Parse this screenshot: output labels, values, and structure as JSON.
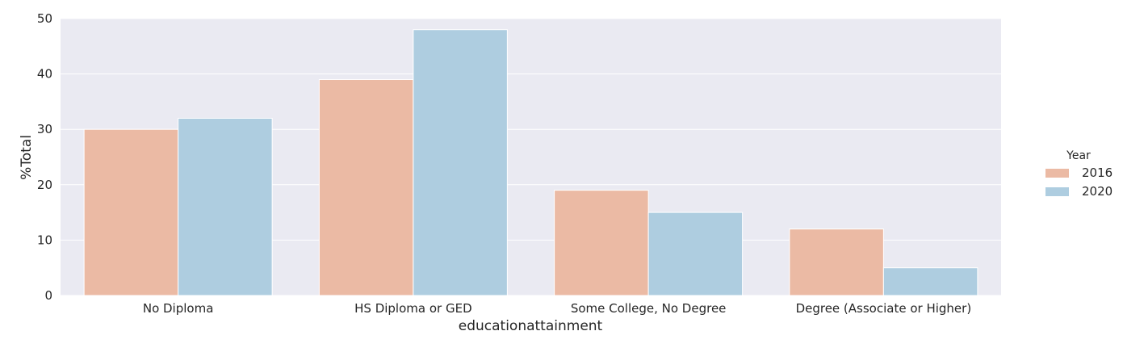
{
  "chart_data": {
    "type": "bar",
    "categories": [
      "No Diploma",
      "HS Diploma or GED",
      "Some College, No Degree",
      "Degree (Associate or Higher)"
    ],
    "series": [
      {
        "name": "2016",
        "values": [
          30,
          39,
          19,
          12
        ],
        "color": "#ebbaa4"
      },
      {
        "name": "2020",
        "values": [
          32,
          48,
          15,
          5
        ],
        "color": "#aecde0"
      }
    ],
    "xlabel": "educationattainment",
    "ylabel": "%Total",
    "ylim": [
      0,
      50
    ],
    "yticks": [
      0,
      10,
      20,
      30,
      40,
      50
    ],
    "legend": {
      "title": "Year",
      "placement": "right"
    },
    "grid": true,
    "background": "#eaeaf2"
  }
}
